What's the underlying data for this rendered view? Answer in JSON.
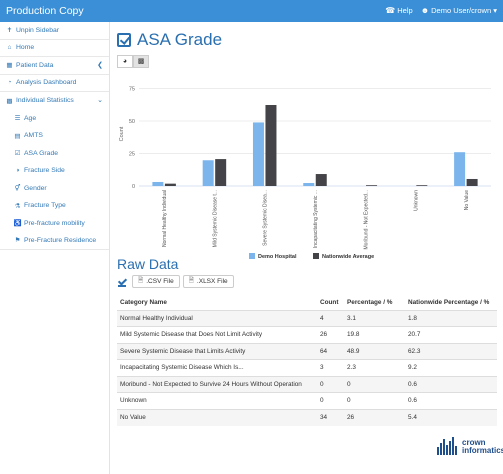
{
  "header": {
    "brand": "Production Copy",
    "help_label": "Help",
    "user_label": "Demo User/crown ▾"
  },
  "sidebar": {
    "unpin_label": "Unpin Sidebar",
    "home_label": "Home",
    "patient_data_label": "Patient Data",
    "analysis_dashboard_label": "Analysis Dashboard",
    "individual_statistics_label": "Individual Statistics",
    "sub_items": [
      {
        "label": "Age",
        "icon": "☰"
      },
      {
        "label": "AMTS",
        "icon": "▤"
      },
      {
        "label": "ASA Grade",
        "icon": "☑"
      },
      {
        "label": "Fracture Side",
        "icon": "◑"
      },
      {
        "label": "Gender",
        "icon": "⚥"
      },
      {
        "label": "Fracture Type",
        "icon": "⚗"
      },
      {
        "label": "Pre-fracture mobility",
        "icon": "♿"
      },
      {
        "label": "Pre-Fracture Residence",
        "icon": "⚑"
      }
    ]
  },
  "page": {
    "title": "ASA Grade"
  },
  "chart_data": {
    "type": "bar",
    "categories": [
      "Normal Healthy Individual",
      "Mild Systemic Disease t...",
      "Severe Systemic Disea...",
      "Incapacitating Systemic ...",
      "Moribund - Not Expected...",
      "Unknown",
      "No Value"
    ],
    "series": [
      {
        "name": "Demo Hospital",
        "values": [
          3.1,
          19.8,
          48.9,
          2.3,
          0,
          0,
          26
        ],
        "color": "#7cb5ec"
      },
      {
        "name": "Nationwide Average",
        "values": [
          1.8,
          20.7,
          62.3,
          9.2,
          0.6,
          0.6,
          5.4
        ],
        "color": "#434348"
      }
    ],
    "ylabel": "Count",
    "yticks": [
      0,
      25,
      50,
      75
    ],
    "ylim": [
      0,
      80
    ],
    "legend": "bottom-center",
    "grid": true
  },
  "raw_data": {
    "title": "Raw Data",
    "csv_label": ".CSV File",
    "xlsx_label": ".XLSX File",
    "columns": [
      "Category Name",
      "Count",
      "Percentage / %",
      "Nationwide Percentage / %"
    ],
    "rows": [
      [
        "Normal Healthy Individual",
        "4",
        "3.1",
        "1.8"
      ],
      [
        "Mild Systemic Disease that Does Not Limit Activity",
        "26",
        "19.8",
        "20.7"
      ],
      [
        "Severe Systemic Disease that Limits Activity",
        "64",
        "48.9",
        "62.3"
      ],
      [
        "Incapacitating Systemic Disease Which Is...",
        "3",
        "2.3",
        "9.2"
      ],
      [
        "Moribund - Not Expected to Survive 24 Hours Without Operation",
        "0",
        "0",
        "0.6"
      ],
      [
        "Unknown",
        "0",
        "0",
        "0.6"
      ],
      [
        "No Value",
        "34",
        "26",
        "5.4"
      ]
    ]
  },
  "footer": {
    "logo_line1": "crown",
    "logo_line2": "informatics"
  }
}
